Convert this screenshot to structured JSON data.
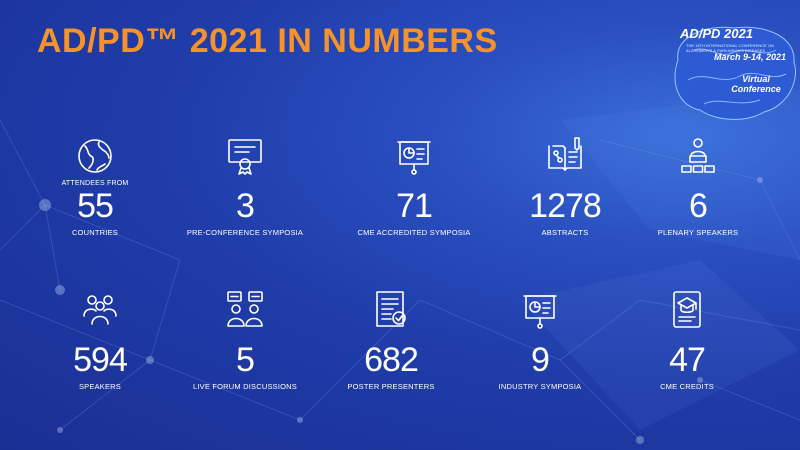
{
  "title": "AD/PD™ 2021 IN NUMBERS",
  "badge": {
    "year": "AD/PD 2021",
    "subtitle": "THE 15TH INTERNATIONAL CONFERENCE ON ALZHEIMER'S & PARKINSON'S DISEASES",
    "dates": "March 9-14, 2021",
    "virtual_line1": "Virtual",
    "virtual_line2": "Conference",
    "accent": "#2c5bd4"
  },
  "colors": {
    "title": "#f5922a",
    "text": "#ffffff",
    "background": "#1f3ca8"
  },
  "stats_row1": [
    {
      "icon": "globe-icon",
      "pre": "ATTENDEES FROM",
      "value": "55",
      "caption": "COUNTRIES"
    },
    {
      "icon": "certificate-icon",
      "pre": "",
      "value": "3",
      "caption": "PRE-CONFERENCE SYMPOSIA"
    },
    {
      "icon": "presentation-board-icon",
      "pre": "",
      "value": "71",
      "caption": "CME ACCREDITED SYMPOSIA"
    },
    {
      "icon": "open-book-icon",
      "pre": "",
      "value": "1278",
      "caption": "ABSTRACTS"
    },
    {
      "icon": "podium-speaker-icon",
      "pre": "",
      "value": "6",
      "caption": "PLENARY SPEAKERS"
    }
  ],
  "stats_row2": [
    {
      "icon": "speakers-group-icon",
      "pre": "",
      "value": "594",
      "caption": "SPEAKERS"
    },
    {
      "icon": "forum-discussion-icon",
      "pre": "",
      "value": "5",
      "caption": "LIVE FORUM DISCUSSIONS"
    },
    {
      "icon": "poster-document-icon",
      "pre": "",
      "value": "682",
      "caption": "POSTER PRESENTERS"
    },
    {
      "icon": "industry-presentation-icon",
      "pre": "",
      "value": "9",
      "caption": "INDUSTRY SYMPOSIA"
    },
    {
      "icon": "graduation-tablet-icon",
      "pre": "",
      "value": "47",
      "caption": "CME CREDITS"
    }
  ]
}
